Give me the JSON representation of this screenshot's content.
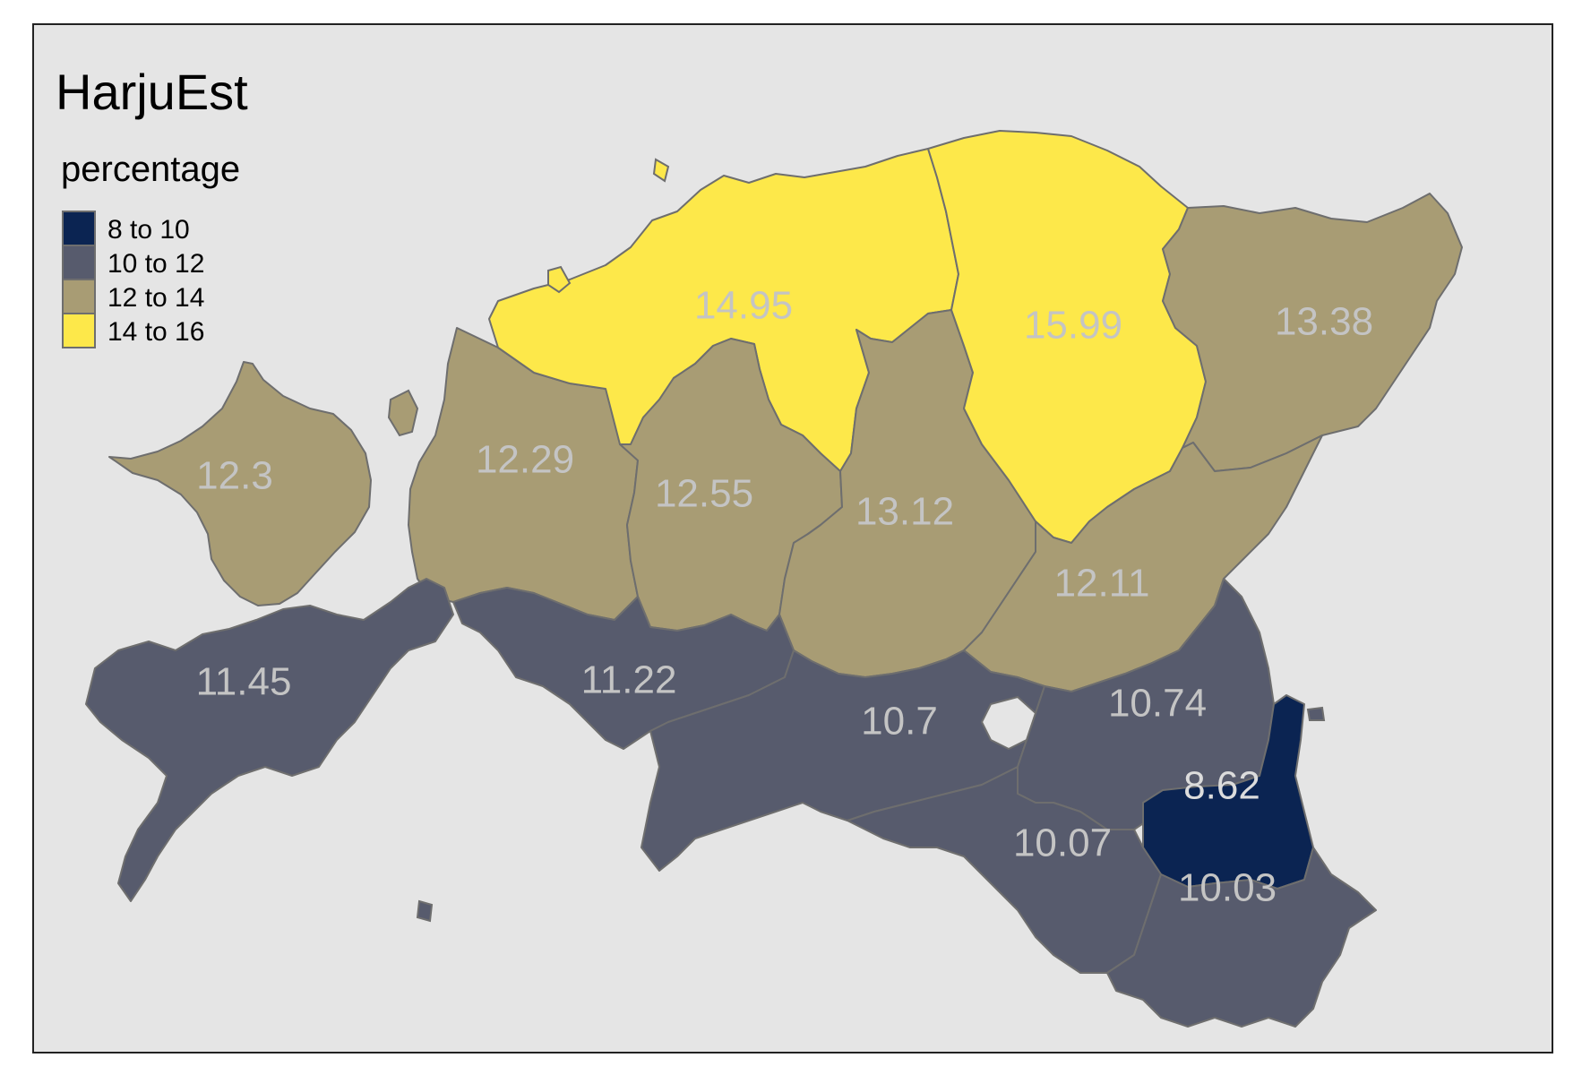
{
  "title": "HarjuEst",
  "legend": {
    "title": "percentage",
    "classes": [
      {
        "label": "8 to 10",
        "color": "#0b2452"
      },
      {
        "label": "10 to 12",
        "color": "#575b6d"
      },
      {
        "label": "12 to 14",
        "color": "#a89c74"
      },
      {
        "label": "14 to 16",
        "color": "#fde84a"
      }
    ]
  },
  "regions": [
    {
      "id": "r1",
      "value": "12.3",
      "color": "#a89c74"
    },
    {
      "id": "r2",
      "value": "12.29",
      "color": "#a89c74"
    },
    {
      "id": "r3",
      "value": "14.95",
      "color": "#fde84a"
    },
    {
      "id": "r4",
      "value": "12.55",
      "color": "#a89c74"
    },
    {
      "id": "r5",
      "value": "13.12",
      "color": "#a89c74"
    },
    {
      "id": "r6",
      "value": "15.99",
      "color": "#fde84a"
    },
    {
      "id": "r7",
      "value": "13.38",
      "color": "#a89c74"
    },
    {
      "id": "r8",
      "value": "12.11",
      "color": "#a89c74"
    },
    {
      "id": "r9",
      "value": "11.45",
      "color": "#575b6d"
    },
    {
      "id": "r10",
      "value": "11.22",
      "color": "#575b6d"
    },
    {
      "id": "r11",
      "value": "10.7",
      "color": "#575b6d"
    },
    {
      "id": "r12",
      "value": "10.74",
      "color": "#575b6d"
    },
    {
      "id": "r13",
      "value": "8.62",
      "color": "#0b2452"
    },
    {
      "id": "r14",
      "value": "10.07",
      "color": "#575b6d"
    },
    {
      "id": "r15",
      "value": "10.03",
      "color": "#575b6d"
    }
  ],
  "colors": {
    "panel_background": "#e5e5e5",
    "frame": "#222222",
    "border": "#6e6e6e",
    "label_text": "#c4c4c4"
  }
}
